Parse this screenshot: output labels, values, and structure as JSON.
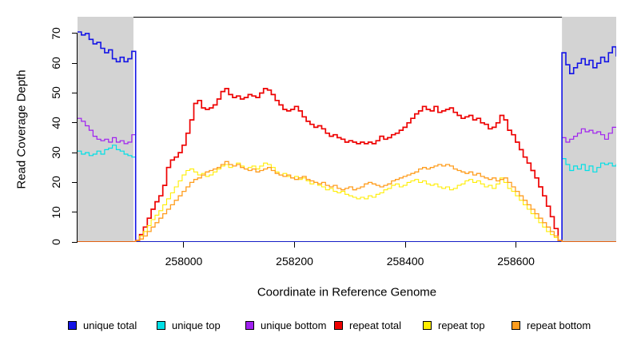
{
  "chart_data": {
    "type": "line",
    "step_interpolation": true,
    "title": "",
    "xlabel": "Coordinate in Reference Genome",
    "ylabel": "Read Coverage Depth",
    "xlim": [
      257808,
      258781
    ],
    "ylim": [
      0,
      75.6
    ],
    "x_tick_values": [
      258000,
      258200,
      258400,
      258600
    ],
    "x_tick_labels": [
      "258000",
      "258200",
      "258400",
      "258600"
    ],
    "y_tick_values": [
      0,
      10,
      20,
      30,
      40,
      50,
      60,
      70
    ],
    "y_tick_labels": [
      "0",
      "10",
      "20",
      "30",
      "40",
      "50",
      "60",
      "70"
    ],
    "grid": false,
    "legend_position": "bottom",
    "axis_color": "#000000",
    "shaded_regions": [
      {
        "name": "masked-region-left",
        "from": 257808,
        "to": 257909,
        "color": "#d3d3d3"
      },
      {
        "name": "masked-region-right",
        "from": 258683,
        "to": 258781,
        "color": "#d3d3d3"
      }
    ],
    "x_start": 257808,
    "x_step": 7,
    "draw_order": [
      2,
      1,
      0,
      3,
      4,
      5
    ],
    "series": [
      {
        "name": "unique total",
        "color": "#1414e6",
        "line_width": 1.6,
        "values": [
          70.5,
          69.5,
          70,
          68,
          66.5,
          67,
          65,
          63.5,
          64.5,
          61.5,
          60.5,
          62,
          60.5,
          61.5,
          64,
          [
            0,
            110
          ],
          63.5,
          59.5,
          56.5,
          58.5,
          60,
          61.5,
          59.5,
          61,
          58.5,
          60,
          62,
          60.5,
          63.5,
          65.5,
          62.5
        ]
      },
      {
        "name": "unique top",
        "color": "#00e0e6",
        "line_width": 1.2,
        "values": [
          30.5,
          29.5,
          30,
          29,
          29.5,
          30.5,
          29.5,
          31,
          31.5,
          32.5,
          31,
          30.5,
          29.5,
          29,
          28.5,
          [
            0,
            110
          ],
          28,
          26,
          24,
          25.5,
          24.5,
          26,
          24,
          25.5,
          23.5,
          25,
          26.5,
          26,
          26.5,
          25.5,
          26
        ]
      },
      {
        "name": "unique bottom",
        "color": "#a020f0",
        "line_width": 1.2,
        "values": [
          41.5,
          40.5,
          39,
          37.5,
          35.5,
          34.5,
          34,
          34.5,
          33.5,
          35,
          33.5,
          34,
          33,
          33.5,
          36,
          [
            0,
            110
          ],
          35,
          33.5,
          34.5,
          35.5,
          36.5,
          38,
          37,
          37.5,
          36.5,
          37,
          36,
          34.5,
          36.5,
          38.5,
          38.5
        ]
      },
      {
        "name": "repeat total",
        "color": "#ee0000",
        "line_width": 1.7,
        "values": [
          [
            0,
            15
          ],
          0.5,
          2.5,
          5,
          8,
          11,
          13.5,
          15.5,
          19,
          25,
          27.5,
          28.5,
          30,
          32.5,
          36.5,
          41,
          46.5,
          47.5,
          45,
          44.5,
          45,
          46,
          48,
          50.5,
          51.5,
          49.5,
          48.5,
          49,
          48,
          48.5,
          49.5,
          49,
          48.5,
          50,
          51.5,
          51,
          49.5,
          47.5,
          46,
          44.5,
          44,
          44.5,
          45.5,
          44,
          42,
          40.5,
          39.5,
          38.5,
          39,
          38,
          36.5,
          35.5,
          36,
          35,
          34.5,
          33.5,
          34,
          33.5,
          33,
          33.5,
          33,
          33.5,
          33,
          34,
          35.5,
          34.5,
          35,
          36,
          36.5,
          37.5,
          38.5,
          40,
          41.5,
          43,
          44,
          45.5,
          44.5,
          44,
          45.5,
          43.5,
          44,
          44.5,
          45,
          43.5,
          42.5,
          41.5,
          42,
          42.5,
          41,
          41.5,
          40,
          39.5,
          38,
          38.5,
          40,
          42.5,
          41,
          37.5,
          36,
          33.5,
          31,
          28.5,
          26.5,
          24,
          21.5,
          18.5,
          15.5,
          12,
          8.5,
          4.5,
          0.5,
          [
            0,
            15
          ]
        ]
      },
      {
        "name": "repeat top",
        "color": "#ffee00",
        "line_width": 1.1,
        "values": [
          [
            0,
            15
          ],
          0.5,
          2,
          3.5,
          5.5,
          7.5,
          9,
          10.5,
          12.5,
          14.5,
          16.5,
          18.5,
          20.5,
          22.5,
          24,
          24.5,
          23.5,
          22.5,
          23,
          22,
          22.5,
          23.5,
          24.5,
          25.5,
          26,
          25,
          25.5,
          26.5,
          25.5,
          24.5,
          25,
          25.5,
          24.5,
          25.5,
          26.5,
          26,
          25,
          23.5,
          22.5,
          23,
          22,
          21.5,
          22,
          21,
          21.5,
          20.5,
          19.5,
          20,
          19,
          18.5,
          17.5,
          18,
          17,
          16.5,
          17,
          16,
          15.5,
          15,
          14.5,
          15,
          14.5,
          15.5,
          15,
          16,
          16.5,
          17.5,
          18,
          19,
          19.5,
          18.5,
          19,
          20,
          20.5,
          21,
          20,
          20.5,
          19.5,
          19,
          19.5,
          18.5,
          18,
          18.5,
          17.5,
          18,
          19,
          19.5,
          20.5,
          21,
          20,
          20.5,
          19.5,
          18.5,
          19,
          18,
          19.5,
          21.5,
          20,
          18,
          17,
          15.5,
          14,
          12.5,
          11,
          9.5,
          8,
          6.5,
          5,
          3.5,
          2.5,
          1.5,
          0.5,
          [
            0,
            15
          ]
        ]
      },
      {
        "name": "repeat bottom",
        "color": "#ff9d1e",
        "line_width": 1.3,
        "values": [
          [
            0,
            15
          ],
          0.5,
          1,
          2,
          3.5,
          5,
          6.5,
          8,
          9.5,
          11,
          12.5,
          14,
          15.5,
          17,
          18.5,
          20,
          21,
          21.5,
          22.5,
          23.5,
          24,
          24.5,
          25,
          26,
          27,
          26,
          25.5,
          26,
          25,
          24.5,
          24,
          24.5,
          23.5,
          24,
          24.5,
          25,
          24,
          23,
          22.5,
          22,
          22.5,
          21.5,
          21,
          21.5,
          22,
          21,
          20.5,
          20,
          19.5,
          20,
          19,
          18.5,
          19,
          18,
          17.5,
          18,
          18.5,
          17.5,
          18,
          18.5,
          19.5,
          20,
          19.5,
          19,
          18.5,
          19,
          19.5,
          20.5,
          21,
          21.5,
          22,
          22.5,
          23,
          23.5,
          24.5,
          25,
          24.5,
          25,
          25.5,
          26,
          25.5,
          26,
          25.5,
          24.5,
          24,
          23.5,
          23,
          23.5,
          22.5,
          23,
          22,
          21.5,
          21,
          21.5,
          20.5,
          21,
          21.5,
          20,
          18.5,
          17,
          15.5,
          14,
          12.5,
          11,
          9.5,
          8,
          6.5,
          5,
          3.5,
          2,
          0.5,
          [
            0,
            15
          ]
        ]
      }
    ]
  }
}
